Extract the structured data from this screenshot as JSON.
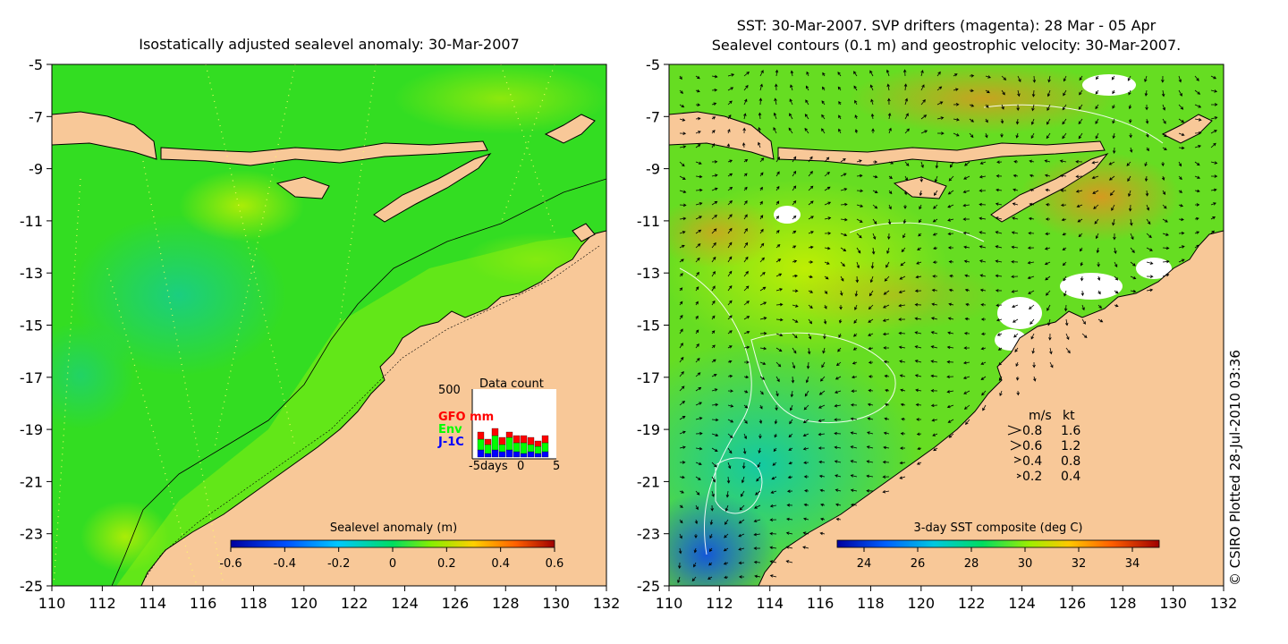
{
  "left_panel": {
    "title": "Isostatically adjusted sealevel anomaly: 30-Mar-2007",
    "y_ticks": [
      "-5",
      "-7",
      "-9",
      "-11",
      "-13",
      "-15",
      "-17",
      "-19",
      "-21",
      "-23",
      "-25"
    ],
    "x_ticks": [
      "110",
      "112",
      "114",
      "116",
      "118",
      "120",
      "122",
      "124",
      "126",
      "128",
      "130",
      "132"
    ],
    "colorbar": {
      "label": "Sealevel anomaly (m)",
      "ticks": [
        "-0.6",
        "-0.4",
        "-0.2",
        "0",
        "0.2",
        "0.4",
        "0.6"
      ]
    },
    "data_count": {
      "title": "Data count",
      "y_label": "500",
      "series": [
        {
          "name": "GFO mm",
          "color": "#ff0000"
        },
        {
          "name": "Env",
          "color": "#00ff00"
        },
        {
          "name": "J-1C",
          "color": "#0000ff"
        }
      ],
      "x_labels": [
        "-5days",
        "0",
        "5"
      ]
    }
  },
  "right_panel": {
    "title_line1": "SST: 30-Mar-2007. SVP drifters (magenta): 28 Mar - 05 Apr",
    "title_line2": "Sealevel contours (0.1 m) and geostrophic velocity: 30-Mar-2007.",
    "y_ticks": [
      "-5",
      "-7",
      "-9",
      "-11",
      "-13",
      "-15",
      "-17",
      "-19",
      "-21",
      "-23",
      "-25"
    ],
    "x_ticks": [
      "110",
      "112",
      "114",
      "116",
      "118",
      "120",
      "122",
      "124",
      "126",
      "128",
      "130",
      "132"
    ],
    "colorbar": {
      "label": "3-day SST composite (deg C)",
      "ticks": [
        "24",
        "26",
        "28",
        "30",
        "32",
        "34"
      ]
    },
    "velocity_legend": {
      "header_ms": "m/s",
      "header_kt": "kt",
      "rows": [
        {
          "ms": "0.8",
          "kt": "1.6"
        },
        {
          "ms": "0.6",
          "kt": "1.2"
        },
        {
          "ms": "0.4",
          "kt": "0.8"
        },
        {
          "ms": "0.2",
          "kt": "0.4"
        }
      ]
    }
  },
  "credit": "© CSIRO Plotted 28-Jul-2010 03:36",
  "colors": {
    "land": "#f8c898",
    "ocean_green": "#33dd22",
    "ocean_light": "#88ee11",
    "ocean_cyan": "#11c8a0",
    "sst_orange": "#f08a20",
    "sst_blue": "#1060e0"
  }
}
